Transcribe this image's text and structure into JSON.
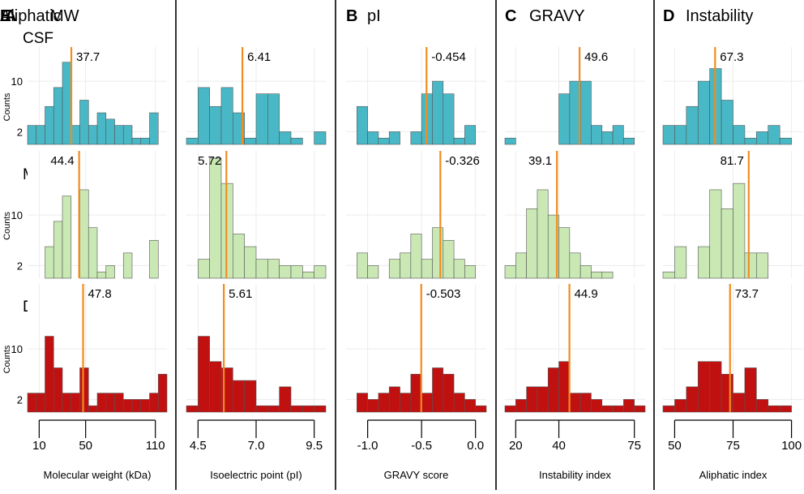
{
  "colors": {
    "CSF": "#49b8c6",
    "Membrane": "#c9e8b4",
    "Dialysate": "#c11010",
    "median_line": "#f28c1e",
    "panel_bg": "#ffffff",
    "grid": "#ececec",
    "bar_stroke": "#555555",
    "divider": "#000000"
  },
  "row_labels": [
    "CSF",
    "Membrane",
    "Dialysate"
  ],
  "y_axis": {
    "label": "Counts",
    "ticks": [
      2,
      10
    ]
  },
  "chart_data": [
    {
      "type": "bar",
      "panel_letter": "A",
      "title": "MW",
      "xlabel": "Molecular weight (kDa)",
      "xlim": [
        0,
        120
      ],
      "xticks": [
        10,
        50,
        110
      ],
      "tick_labels": [
        "10",
        "50",
        "110"
      ],
      "bin_edges": [
        0,
        7.5,
        15,
        22.5,
        30,
        37.5,
        45,
        52.5,
        60,
        67.5,
        75,
        82.5,
        90,
        97.5,
        105,
        112.5,
        120
      ],
      "series": [
        {
          "name": "CSF",
          "values": [
            3,
            3,
            6,
            9,
            13,
            3,
            7,
            3,
            5,
            4,
            3,
            3,
            1,
            1,
            5,
            0
          ],
          "median": 37.7,
          "median_label": "37.7"
        },
        {
          "name": "Membrane",
          "values": [
            0,
            0,
            5,
            9,
            13,
            0,
            14,
            8,
            1,
            2,
            0,
            4,
            0,
            0,
            6,
            0
          ],
          "median": 44.4,
          "median_label": "44.4"
        },
        {
          "name": "Dialysate",
          "values": [
            3,
            3,
            12,
            7,
            3,
            3,
            7,
            1,
            3,
            3,
            3,
            2,
            2,
            2,
            3,
            6
          ],
          "median": 47.8,
          "median_label": "47.8"
        }
      ]
    },
    {
      "type": "bar",
      "panel_letter": "B",
      "title": "pI",
      "xlabel": "Isoelectric point (pI)",
      "xlim": [
        4,
        10
      ],
      "xticks": [
        4.5,
        7.0,
        9.5
      ],
      "tick_labels": [
        "4.5",
        "7.0",
        "9.5"
      ],
      "bin_edges": [
        4,
        4.5,
        5,
        5.5,
        6,
        6.5,
        7,
        7.5,
        8,
        8.5,
        9,
        9.5,
        10
      ],
      "series": [
        {
          "name": "CSF",
          "values": [
            1,
            9,
            6,
            9,
            5,
            1,
            8,
            8,
            2,
            1,
            0,
            2
          ],
          "median": 6.41,
          "median_label": "6.41"
        },
        {
          "name": "Membrane",
          "values": [
            0,
            3,
            19,
            15,
            7,
            5,
            3,
            3,
            2,
            2,
            1,
            2
          ],
          "median": 5.72,
          "median_label": "5.72"
        },
        {
          "name": "Dialysate",
          "values": [
            1,
            12,
            8,
            7,
            5,
            5,
            1,
            1,
            4,
            1,
            1,
            1
          ],
          "median": 5.61,
          "median_label": "5.61"
        }
      ]
    },
    {
      "type": "bar",
      "panel_letter": "C",
      "title": "GRAVY",
      "xlabel": "GRAVY score",
      "xlim": [
        -1.2,
        0.1
      ],
      "xticks": [
        -1.0,
        -0.5,
        0.0
      ],
      "tick_labels": [
        "-1.0",
        "-0.5",
        "0.0"
      ],
      "bin_edges": [
        -1.2,
        -1.1,
        -1.0,
        -0.9,
        -0.8,
        -0.7,
        -0.6,
        -0.5,
        -0.4,
        -0.3,
        -0.2,
        -0.1,
        0.0,
        0.1
      ],
      "series": [
        {
          "name": "CSF",
          "values": [
            0,
            6,
            2,
            1,
            2,
            0,
            2,
            8,
            10,
            8,
            1,
            3,
            0
          ],
          "median": -0.454,
          "median_label": "-0.454"
        },
        {
          "name": "Membrane",
          "values": [
            0,
            4,
            2,
            0,
            3,
            4,
            7,
            3,
            8,
            6,
            3,
            2,
            0
          ],
          "median": -0.326,
          "median_label": "-0.326"
        },
        {
          "name": "Dialysate",
          "values": [
            0,
            3,
            2,
            3,
            4,
            3,
            6,
            3,
            7,
            6,
            3,
            2,
            1
          ],
          "median": -0.503,
          "median_label": "-0.503"
        }
      ]
    },
    {
      "type": "bar",
      "panel_letter": "D",
      "title": "Instability",
      "xlabel": "Instability index",
      "xlim": [
        15,
        80
      ],
      "xticks": [
        20,
        40,
        75
      ],
      "tick_labels": [
        "20",
        "40",
        "75"
      ],
      "bin_edges": [
        15,
        20,
        25,
        30,
        35,
        40,
        45,
        50,
        55,
        60,
        65,
        70,
        75,
        80
      ],
      "series": [
        {
          "name": "CSF",
          "values": [
            1,
            0,
            0,
            0,
            0,
            8,
            10,
            10,
            3,
            2,
            3,
            1,
            0
          ],
          "median": 49.6,
          "median_label": "49.6"
        },
        {
          "name": "Membrane",
          "values": [
            2,
            4,
            11,
            14,
            10,
            8,
            4,
            2,
            1,
            1,
            0,
            0,
            0
          ],
          "median": 39.1,
          "median_label": "39.1"
        },
        {
          "name": "Dialysate",
          "values": [
            1,
            2,
            4,
            4,
            7,
            8,
            3,
            3,
            2,
            1,
            1,
            2,
            1
          ],
          "median": 44.9,
          "median_label": "44.9"
        }
      ]
    },
    {
      "type": "bar",
      "panel_letter": "E",
      "title": "Aliphatic",
      "xlabel": "Aliphatic index",
      "xlim": [
        45,
        105
      ],
      "xticks": [
        50,
        75,
        100
      ],
      "tick_labels": [
        "50",
        "75",
        "100"
      ],
      "bin_edges": [
        45,
        50,
        55,
        60,
        65,
        70,
        75,
        80,
        85,
        90,
        95,
        100,
        105
      ],
      "series": [
        {
          "name": "CSF",
          "values": [
            3,
            3,
            6,
            10,
            12,
            7,
            3,
            1,
            2,
            3,
            1,
            0
          ],
          "median": 67.3,
          "median_label": "67.3"
        },
        {
          "name": "Membrane",
          "values": [
            1,
            5,
            0,
            5,
            14,
            11,
            15,
            4,
            4,
            0,
            0,
            0
          ],
          "median": 81.7,
          "median_label": "81.7"
        },
        {
          "name": "Dialysate",
          "values": [
            1,
            2,
            4,
            8,
            8,
            6,
            3,
            7,
            2,
            1,
            1,
            0
          ],
          "median": 73.7,
          "median_label": "73.7"
        }
      ]
    }
  ]
}
